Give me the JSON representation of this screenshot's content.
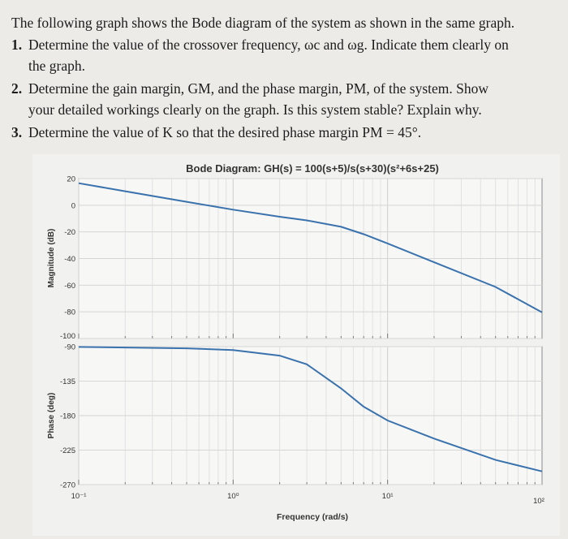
{
  "question": {
    "intro": "The following graph shows the Bode diagram of the system as shown in the same graph.",
    "items": [
      {
        "number": "1.",
        "lines": [
          "Determine the value of the crossover frequency, ωc and ωg. Indicate them clearly on",
          "the graph."
        ]
      },
      {
        "number": "2.",
        "lines": [
          "Determine the gain margin, GM, and the phase margin, PM, of the system. Show",
          "your detailed workings clearly on the graph. Is this system stable? Explain why."
        ]
      },
      {
        "number": "3.",
        "lines": [
          "Determine the value of K so that the desired phase margin PM = 45°."
        ]
      }
    ]
  },
  "chart_data": {
    "type": "line",
    "title": "Bode Diagram: GH(s) = 100(s+5)/s(s+30)(s²+6s+25)",
    "xlabel": "Frequency (rad/s)",
    "x_scale": "log",
    "xlim": [
      0.1,
      100
    ],
    "x_tick_labels": [
      "10⁻¹",
      "10⁰",
      "10¹",
      "10²"
    ],
    "grid": true,
    "line_color": "#3a72ad",
    "panels": [
      {
        "name": "magnitude",
        "ylabel": "Magnitude (dB)",
        "ylim": [
          -100,
          20
        ],
        "y_ticks": [
          20,
          0,
          -20,
          -40,
          -60,
          -80,
          -100
        ],
        "x": [
          0.1,
          0.2,
          0.5,
          1,
          2,
          3,
          5,
          7,
          10,
          20,
          50,
          100
        ],
        "y": [
          16.5,
          10.5,
          2.6,
          -3.3,
          -8.6,
          -11.4,
          -16.2,
          -21.7,
          -28.7,
          -42.8,
          -61.3,
          -80.4
        ]
      },
      {
        "name": "phase",
        "ylabel": "Phase (deg)",
        "ylim": [
          -270,
          -90
        ],
        "y_ticks": [
          -90,
          -135,
          -180,
          -225,
          -270
        ],
        "x": [
          0.1,
          0.5,
          1,
          2,
          3,
          5,
          7,
          10,
          20,
          50,
          100
        ],
        "y": [
          -90.4,
          -92.2,
          -94.6,
          -101.8,
          -113.1,
          -144.5,
          -168.4,
          -186.3,
          -210,
          -237.8,
          -252.7
        ]
      }
    ]
  }
}
